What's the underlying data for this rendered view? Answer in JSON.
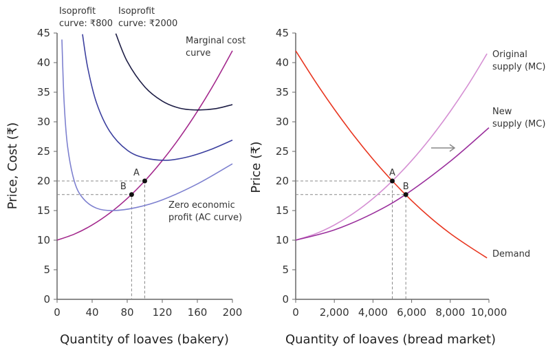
{
  "chart_data": [
    {
      "type": "line",
      "xlabel": "Quantity of loaves (bakery)",
      "ylabel": "Price, Cost (₹)",
      "xlim": [
        0,
        200
      ],
      "ylim": [
        0,
        45
      ],
      "xticks": [
        "0",
        "40",
        "80",
        "120",
        "160",
        "200"
      ],
      "yticks": [
        "0",
        "5",
        "10",
        "15",
        "20",
        "25",
        "30",
        "35",
        "40",
        "45"
      ],
      "series": [
        {
          "name": "Marginal cost curve",
          "color": "#a3288c",
          "x": [
            0,
            20,
            40,
            60,
            80,
            100,
            120,
            140,
            160,
            180,
            200
          ],
          "y": [
            10,
            11.04,
            12.56,
            14.56,
            17.04,
            20,
            23.44,
            27.36,
            31.76,
            36.64,
            42
          ]
        },
        {
          "name": "Zero economic profit (AC curve)",
          "color": "#7d80cf",
          "x": [
            5.5,
            8,
            12,
            20,
            30,
            45,
            64,
            90,
            120,
            160,
            200
          ],
          "y": [
            43.9,
            33.4,
            25.8,
            19.8,
            17.0,
            15.4,
            15.0,
            15.5,
            16.8,
            19.5,
            22.9
          ]
        },
        {
          "name": "Isoprofit curve: ₹800",
          "color": "#3b3f9e",
          "x": [
            29,
            35,
            45,
            60,
            80,
            100,
            125,
            150,
            175,
            200
          ],
          "y": [
            44.8,
            39.1,
            33.2,
            28.4,
            25.2,
            23.9,
            23.5,
            24.1,
            25.3,
            26.9
          ]
        },
        {
          "name": "Isoprofit curve:  ₹2000",
          "color": "#1c1c44",
          "x": [
            67,
            80,
            100,
            120,
            140,
            160,
            180,
            200
          ],
          "y": [
            44.9,
            40.2,
            35.9,
            33.5,
            32.3,
            32.0,
            32.2,
            32.9
          ]
        }
      ],
      "points": [
        {
          "label": "A",
          "x": 100,
          "y": 20
        },
        {
          "label": "B",
          "x": 85,
          "y": 17.7
        }
      ]
    },
    {
      "type": "line",
      "xlabel": "Quantity of loaves (bread market)",
      "ylabel": "Price (₹)",
      "xlim": [
        0,
        10000
      ],
      "ylim": [
        0,
        45
      ],
      "xticks": [
        "0",
        "2,000",
        "4,000",
        "6,000",
        "8,000",
        "10,000"
      ],
      "yticks": [
        "0",
        "5",
        "10",
        "15",
        "20",
        "25",
        "30",
        "35",
        "40",
        "45"
      ],
      "series": [
        {
          "name": "Original supply (MC)",
          "color": "#d58fd3",
          "x": [
            0,
            1000,
            2000,
            3000,
            4000,
            5000,
            6000,
            7000,
            8000,
            9000,
            9900
          ],
          "y": [
            10,
            11.04,
            12.56,
            14.56,
            17.04,
            20,
            23.44,
            27.36,
            31.76,
            36.64,
            41.5
          ]
        },
        {
          "name": "New supply (MC)",
          "color": "#9a2f9c",
          "x": [
            0,
            2000,
            4000,
            5700,
            8000,
            10000
          ],
          "y": [
            10,
            11.73,
            14.53,
            17.74,
            23.33,
            29.0
          ]
        },
        {
          "name": "Demand",
          "color": "#e8351f",
          "x": [
            0,
            1000,
            2000,
            3000,
            4000,
            5000,
            6000,
            7000,
            8000,
            9000,
            9900
          ],
          "y": [
            42,
            36.88,
            32.12,
            27.72,
            23.68,
            20,
            16.68,
            13.72,
            11.12,
            8.88,
            7.0
          ]
        }
      ],
      "points": [
        {
          "label": "A",
          "x": 5000,
          "y": 20
        },
        {
          "label": "B",
          "x": 5700,
          "y": 17.7
        }
      ]
    }
  ]
}
